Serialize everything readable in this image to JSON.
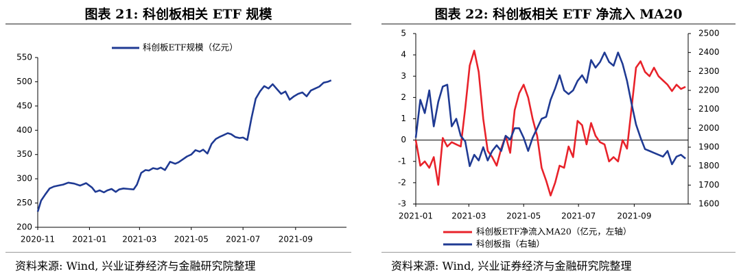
{
  "left": {
    "title": "图表 21: 科创板相关 ETF 规模",
    "source": "资料来源: Wind, 兴业证券经济与金融研究院整理",
    "chart_data": {
      "type": "line",
      "title": "图表 21: 科创板相关 ETF 规模",
      "xlabel": "",
      "ylabel": "",
      "ylim": [
        200,
        550
      ],
      "yticks": [
        200,
        250,
        300,
        350,
        400,
        450,
        500,
        550
      ],
      "x_ticks": [
        "2020-11",
        "2021-01",
        "2021-03",
        "2021-05",
        "2021-07",
        "2021-09"
      ],
      "legend_position": "top",
      "grid": false,
      "series": [
        {
          "name": "科创板ETF规模（亿元）",
          "color": "#1f3a93",
          "x": [
            "2020-11-01",
            "2020-11-05",
            "2020-11-10",
            "2020-11-15",
            "2020-11-20",
            "2020-11-25",
            "2020-12-01",
            "2020-12-07",
            "2020-12-14",
            "2020-12-21",
            "2020-12-28",
            "2021-01-04",
            "2021-01-08",
            "2021-01-13",
            "2021-01-18",
            "2021-01-22",
            "2021-01-27",
            "2021-02-01",
            "2021-02-05",
            "2021-02-10",
            "2021-02-16",
            "2021-02-22",
            "2021-02-26",
            "2021-03-03",
            "2021-03-08",
            "2021-03-12",
            "2021-03-17",
            "2021-03-22",
            "2021-03-26",
            "2021-03-31",
            "2021-04-06",
            "2021-04-12",
            "2021-04-16",
            "2021-04-21",
            "2021-04-26",
            "2021-05-01",
            "2021-05-06",
            "2021-05-11",
            "2021-05-15",
            "2021-05-20",
            "2021-05-25",
            "2021-05-30",
            "2021-06-03",
            "2021-06-08",
            "2021-06-13",
            "2021-06-17",
            "2021-06-22",
            "2021-06-27",
            "2021-07-01",
            "2021-07-06",
            "2021-07-11",
            "2021-07-16",
            "2021-07-21",
            "2021-07-26",
            "2021-07-31",
            "2021-08-05",
            "2021-08-10",
            "2021-08-15",
            "2021-08-20",
            "2021-08-25",
            "2021-08-30",
            "2021-09-04",
            "2021-09-09",
            "2021-09-14",
            "2021-09-19",
            "2021-09-24",
            "2021-09-29",
            "2021-10-04",
            "2021-10-09",
            "2021-10-13"
          ],
          "values": [
            232,
            255,
            268,
            280,
            284,
            286,
            288,
            292,
            290,
            286,
            291,
            282,
            273,
            276,
            272,
            276,
            279,
            273,
            278,
            280,
            279,
            278,
            288,
            312,
            318,
            317,
            322,
            320,
            323,
            318,
            335,
            331,
            334,
            340,
            346,
            350,
            359,
            356,
            360,
            352,
            372,
            382,
            386,
            390,
            394,
            392,
            386,
            384,
            385,
            380,
            425,
            465,
            480,
            491,
            486,
            495,
            485,
            475,
            480,
            463,
            470,
            475,
            478,
            470,
            482,
            486,
            490,
            498,
            500,
            503
          ]
        }
      ]
    }
  },
  "right": {
    "title": "图表 22: 科创板相关 ETF 净流入 MA20",
    "source": "资料来源: Wind, 兴业证券经济与金融研究院整理",
    "chart_data": {
      "type": "line",
      "title": "图表 22: 科创板相关 ETF 净流入 MA20",
      "xlabel": "",
      "ylabel": "",
      "ylim": [
        -3,
        5
      ],
      "yticks": [
        -3,
        -2,
        -1,
        0,
        1,
        2,
        3,
        4,
        5
      ],
      "y2lim": [
        1600,
        2500
      ],
      "y2ticks": [
        1600,
        1700,
        1800,
        1900,
        2000,
        2100,
        2200,
        2300,
        2400,
        2500
      ],
      "x_ticks": [
        "2021-01",
        "2021-03",
        "2021-05",
        "2021-07",
        "2021-09"
      ],
      "legend_position": "bottom",
      "grid": false,
      "series": [
        {
          "name": "科创板ETF净流入MA20（亿元，左轴）",
          "axis": "left",
          "color": "#e8222a",
          "x": [
            "2021-01-01",
            "2021-01-06",
            "2021-01-11",
            "2021-01-16",
            "2021-01-21",
            "2021-01-26",
            "2021-01-31",
            "2021-02-05",
            "2021-02-10",
            "2021-02-15",
            "2021-02-20",
            "2021-02-25",
            "2021-03-02",
            "2021-03-07",
            "2021-03-12",
            "2021-03-17",
            "2021-03-22",
            "2021-03-27",
            "2021-04-01",
            "2021-04-06",
            "2021-04-11",
            "2021-04-16",
            "2021-04-21",
            "2021-04-26",
            "2021-05-01",
            "2021-05-06",
            "2021-05-11",
            "2021-05-16",
            "2021-05-21",
            "2021-05-26",
            "2021-05-31",
            "2021-06-05",
            "2021-06-10",
            "2021-06-15",
            "2021-06-20",
            "2021-06-25",
            "2021-06-30",
            "2021-07-05",
            "2021-07-10",
            "2021-07-15",
            "2021-07-20",
            "2021-07-25",
            "2021-07-30",
            "2021-08-04",
            "2021-08-09",
            "2021-08-14",
            "2021-08-19",
            "2021-08-24",
            "2021-08-29",
            "2021-09-03",
            "2021-09-08",
            "2021-09-13",
            "2021-09-18",
            "2021-09-23",
            "2021-09-28",
            "2021-10-03",
            "2021-10-08",
            "2021-10-13",
            "2021-10-18",
            "2021-10-23",
            "2021-10-28"
          ],
          "values": [
            0.0,
            -1.2,
            -1.0,
            -1.3,
            -0.8,
            -2.1,
            0.1,
            -0.3,
            -0.1,
            -0.2,
            -0.3,
            1.5,
            3.5,
            4.2,
            3.2,
            1.0,
            -0.5,
            -0.8,
            -1.2,
            -0.4,
            0.2,
            -0.6,
            1.4,
            2.2,
            2.6,
            2.0,
            1.0,
            0.2,
            -1.3,
            -1.9,
            -2.6,
            -2.0,
            -1.2,
            -1.3,
            -0.3,
            -0.8,
            0.9,
            0.7,
            -0.2,
            0.8,
            0.2,
            -0.1,
            -0.2,
            -1.0,
            -0.8,
            -1.0,
            0.0,
            -0.4,
            1.5,
            3.4,
            3.7,
            3.2,
            3.0,
            3.4,
            3.0,
            2.8,
            2.6,
            2.3,
            2.6,
            2.4,
            2.5
          ]
        },
        {
          "name": "科创板指（右轴）",
          "axis": "right",
          "color": "#1f3a93",
          "x": [
            "2021-01-01",
            "2021-01-06",
            "2021-01-11",
            "2021-01-16",
            "2021-01-21",
            "2021-01-26",
            "2021-01-31",
            "2021-02-05",
            "2021-02-10",
            "2021-02-15",
            "2021-02-20",
            "2021-02-25",
            "2021-03-02",
            "2021-03-07",
            "2021-03-12",
            "2021-03-17",
            "2021-03-22",
            "2021-03-27",
            "2021-04-01",
            "2021-04-06",
            "2021-04-11",
            "2021-04-16",
            "2021-04-21",
            "2021-04-26",
            "2021-05-01",
            "2021-05-06",
            "2021-05-11",
            "2021-05-16",
            "2021-05-21",
            "2021-05-26",
            "2021-05-31",
            "2021-06-05",
            "2021-06-10",
            "2021-06-15",
            "2021-06-20",
            "2021-06-25",
            "2021-06-30",
            "2021-07-05",
            "2021-07-10",
            "2021-07-15",
            "2021-07-20",
            "2021-07-25",
            "2021-07-30",
            "2021-08-04",
            "2021-08-09",
            "2021-08-14",
            "2021-08-19",
            "2021-08-24",
            "2021-08-29",
            "2021-09-03",
            "2021-09-08",
            "2021-09-13",
            "2021-09-18",
            "2021-09-23",
            "2021-09-28",
            "2021-10-03",
            "2021-10-08",
            "2021-10-13",
            "2021-10-18",
            "2021-10-23",
            "2021-10-28"
          ],
          "values": [
            1950,
            2150,
            2080,
            2200,
            2010,
            2140,
            2220,
            2230,
            2010,
            2050,
            1960,
            1930,
            1800,
            1860,
            1830,
            1900,
            1830,
            1880,
            1910,
            1880,
            1960,
            1940,
            2000,
            2000,
            1950,
            1880,
            1950,
            2000,
            2050,
            2060,
            2150,
            2210,
            2280,
            2200,
            2180,
            2200,
            2250,
            2280,
            2240,
            2360,
            2320,
            2350,
            2400,
            2350,
            2330,
            2400,
            2340,
            2250,
            2130,
            2020,
            1950,
            1890,
            1880,
            1870,
            1860,
            1850,
            1880,
            1810,
            1850,
            1860,
            1840
          ]
        }
      ]
    }
  }
}
